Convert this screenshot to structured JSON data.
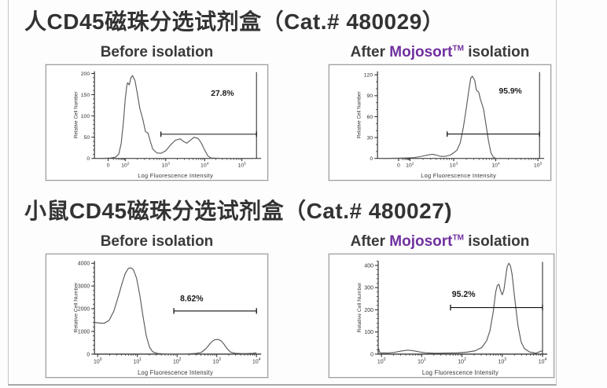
{
  "accent_purple": "#7030a0",
  "curve_color": "#5a5a5a",
  "axis_color": "#222222",
  "sections": [
    {
      "title": "人CD45磁珠分选试剂盒（Cat.# 480029）",
      "columns": [
        {
          "label": "Before isolation"
        },
        {
          "pre": "After",
          "brand": "Mojosort",
          "tm": "TM",
          "post": "isolation"
        }
      ]
    },
    {
      "title": "小鼠CD45磁珠分选试剂盒（Cat.# 480027)",
      "columns": [
        {
          "label": "Before  isolation"
        },
        {
          "pre": "After",
          "brand": "Mojosort",
          "tm": "TM",
          "post": "isolation"
        }
      ]
    }
  ],
  "chart_data": [
    {
      "name": "human-before-isolation",
      "type": "area",
      "title": "Before isolation",
      "xlabel": "Log Fluorescence Intensity",
      "ylabel": "Relative Cell Number",
      "ylim": [
        0,
        205
      ],
      "y_ticks": [
        0,
        50,
        100,
        150,
        200
      ],
      "y_minor_step": 10,
      "x_ticks": [
        "0",
        "10^2",
        "10^3",
        "10^4",
        "10^5"
      ],
      "x_tick_pos": [
        0.085,
        0.19,
        0.44,
        0.68,
        0.91
      ],
      "right_edge": true,
      "gate": {
        "y": 57,
        "x0": 0.41,
        "x1": 1.0,
        "label": "27.8%",
        "label_x": 0.79,
        "label_y": 147
      },
      "curve": [
        [
          0.03,
          0
        ],
        [
          0.1,
          1
        ],
        [
          0.13,
          3
        ],
        [
          0.15,
          10
        ],
        [
          0.165,
          35
        ],
        [
          0.18,
          90
        ],
        [
          0.19,
          140
        ],
        [
          0.2,
          172
        ],
        [
          0.205,
          178
        ],
        [
          0.215,
          173
        ],
        [
          0.225,
          190
        ],
        [
          0.235,
          195
        ],
        [
          0.25,
          183
        ],
        [
          0.265,
          152
        ],
        [
          0.28,
          118
        ],
        [
          0.3,
          90
        ],
        [
          0.315,
          63
        ],
        [
          0.33,
          60
        ],
        [
          0.345,
          40
        ],
        [
          0.36,
          22
        ],
        [
          0.385,
          13
        ],
        [
          0.41,
          12
        ],
        [
          0.44,
          18
        ],
        [
          0.47,
          32
        ],
        [
          0.5,
          43
        ],
        [
          0.53,
          46
        ],
        [
          0.55,
          40
        ],
        [
          0.57,
          36
        ],
        [
          0.59,
          42
        ],
        [
          0.615,
          50
        ],
        [
          0.64,
          47
        ],
        [
          0.66,
          36
        ],
        [
          0.68,
          20
        ],
        [
          0.7,
          6
        ],
        [
          0.72,
          1
        ],
        [
          0.8,
          0
        ],
        [
          0.98,
          0
        ]
      ]
    },
    {
      "name": "human-after-mojosort-isolation",
      "type": "area",
      "title": "After Mojosort TM isolation",
      "xlabel": "Log Fluorescence Intensity",
      "ylabel": "Relative Cell Number",
      "ylim": [
        0,
        125
      ],
      "y_ticks": [
        0,
        30,
        60,
        90,
        120
      ],
      "y_minor_step": 10,
      "x_ticks": [
        "0",
        "10^2",
        "10^3",
        "10^4",
        "10^5"
      ],
      "x_tick_pos": [
        0.13,
        0.2,
        0.47,
        0.73,
        0.99
      ],
      "right_edge": true,
      "gate": {
        "y": 35,
        "x0": 0.43,
        "x1": 1.0,
        "label": "95.9%",
        "label_x": 0.82,
        "label_y": 93
      },
      "curve": [
        [
          0.03,
          0
        ],
        [
          0.15,
          0.5
        ],
        [
          0.22,
          1
        ],
        [
          0.27,
          3
        ],
        [
          0.31,
          5
        ],
        [
          0.34,
          6
        ],
        [
          0.36,
          5
        ],
        [
          0.39,
          3
        ],
        [
          0.42,
          3
        ],
        [
          0.45,
          5
        ],
        [
          0.47,
          8
        ],
        [
          0.49,
          12
        ],
        [
          0.51,
          22
        ],
        [
          0.53,
          45
        ],
        [
          0.55,
          75
        ],
        [
          0.565,
          100
        ],
        [
          0.575,
          115
        ],
        [
          0.585,
          118
        ],
        [
          0.6,
          112
        ],
        [
          0.61,
          98
        ],
        [
          0.625,
          95
        ],
        [
          0.635,
          85
        ],
        [
          0.645,
          78
        ],
        [
          0.655,
          70
        ],
        [
          0.67,
          48
        ],
        [
          0.685,
          25
        ],
        [
          0.7,
          8
        ],
        [
          0.715,
          2
        ],
        [
          0.73,
          0
        ],
        [
          0.95,
          0
        ]
      ]
    },
    {
      "name": "mouse-before-isolation",
      "type": "area",
      "title": "Before isolation",
      "xlabel": "Log Fluorescence Intensity",
      "ylabel": "Relative Cell Number",
      "ylim": [
        0,
        4100
      ],
      "y_ticks": [
        0,
        1000,
        2000,
        3000,
        4000
      ],
      "y_minor_step": 200,
      "x_ticks": [
        "10^0",
        "10^1",
        "10^2",
        "10^3",
        "10^4"
      ],
      "x_tick_pos": [
        0.02,
        0.265,
        0.51,
        0.755,
        1.0
      ],
      "right_edge": false,
      "gate": {
        "y": 1900,
        "x0": 0.49,
        "x1": 1.0,
        "label": "8.62%",
        "label_x": 0.6,
        "label_y": 2330
      },
      "curve": [
        [
          0.0,
          1400
        ],
        [
          0.03,
          1370
        ],
        [
          0.06,
          1360
        ],
        [
          0.09,
          1480
        ],
        [
          0.12,
          1900
        ],
        [
          0.15,
          2600
        ],
        [
          0.17,
          3100
        ],
        [
          0.19,
          3550
        ],
        [
          0.21,
          3780
        ],
        [
          0.225,
          3800
        ],
        [
          0.24,
          3720
        ],
        [
          0.26,
          3350
        ],
        [
          0.28,
          2600
        ],
        [
          0.3,
          1650
        ],
        [
          0.32,
          800
        ],
        [
          0.34,
          300
        ],
        [
          0.36,
          100
        ],
        [
          0.39,
          30
        ],
        [
          0.43,
          12
        ],
        [
          0.5,
          8
        ],
        [
          0.57,
          10
        ],
        [
          0.62,
          25
        ],
        [
          0.66,
          80
        ],
        [
          0.69,
          250
        ],
        [
          0.72,
          520
        ],
        [
          0.74,
          630
        ],
        [
          0.76,
          650
        ],
        [
          0.78,
          600
        ],
        [
          0.8,
          430
        ],
        [
          0.82,
          230
        ],
        [
          0.84,
          90
        ],
        [
          0.87,
          35
        ],
        [
          0.91,
          22
        ],
        [
          0.95,
          25
        ],
        [
          0.98,
          35
        ],
        [
          1.0,
          70
        ]
      ]
    },
    {
      "name": "mouse-after-mojosort-isolation",
      "type": "area",
      "title": "After Mojosort TM isolation",
      "xlabel": "Log Fluorescence Intensity",
      "ylabel": "Relative Cell Number",
      "ylim": [
        0,
        420
      ],
      "y_ticks": [
        0,
        100,
        200,
        300,
        400
      ],
      "y_minor_step": 20,
      "x_ticks": [
        "10^0",
        "10^1",
        "10^2",
        "10^3",
        "10^4"
      ],
      "x_tick_pos": [
        0.02,
        0.265,
        0.51,
        0.755,
        1.0
      ],
      "right_edge": true,
      "gate": {
        "y": 210,
        "x0": 0.44,
        "x1": 1.0,
        "label": "95.2%",
        "label_x": 0.52,
        "label_y": 258
      },
      "curve": [
        [
          0.0,
          30
        ],
        [
          0.01,
          6
        ],
        [
          0.06,
          5
        ],
        [
          0.1,
          8
        ],
        [
          0.14,
          14
        ],
        [
          0.18,
          18
        ],
        [
          0.21,
          16
        ],
        [
          0.25,
          10
        ],
        [
          0.29,
          6
        ],
        [
          0.35,
          4
        ],
        [
          0.42,
          5
        ],
        [
          0.48,
          6
        ],
        [
          0.54,
          9
        ],
        [
          0.59,
          15
        ],
        [
          0.63,
          30
        ],
        [
          0.66,
          60
        ],
        [
          0.68,
          105
        ],
        [
          0.7,
          190
        ],
        [
          0.715,
          280
        ],
        [
          0.725,
          310
        ],
        [
          0.735,
          315
        ],
        [
          0.745,
          285
        ],
        [
          0.755,
          268
        ],
        [
          0.765,
          290
        ],
        [
          0.775,
          345
        ],
        [
          0.785,
          395
        ],
        [
          0.795,
          410
        ],
        [
          0.805,
          398
        ],
        [
          0.815,
          360
        ],
        [
          0.83,
          255
        ],
        [
          0.85,
          130
        ],
        [
          0.87,
          55
        ],
        [
          0.89,
          25
        ],
        [
          0.92,
          10
        ],
        [
          0.96,
          4
        ],
        [
          1.0,
          16
        ]
      ]
    }
  ]
}
